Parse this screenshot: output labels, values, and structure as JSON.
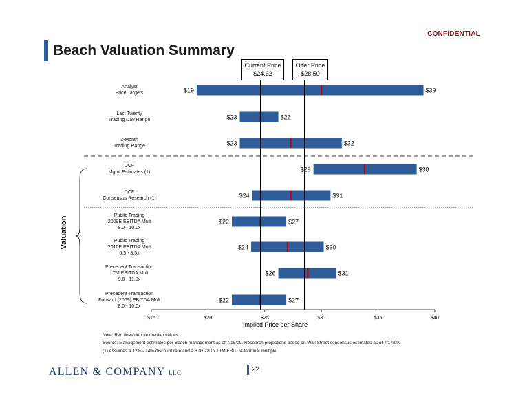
{
  "header": {
    "confidential": "CONFIDENTIAL",
    "title": "Beach Valuation Summary"
  },
  "reference_prices": {
    "current": {
      "label": "Current Price",
      "value": "$24.62",
      "price": 24.62
    },
    "offer": {
      "label": "Offer Price",
      "value": "$28.50",
      "price": 28.5
    }
  },
  "side_label": "Valuation",
  "chart_data": {
    "type": "bar",
    "orientation": "horizontal-range",
    "title": "Beach Valuation Summary",
    "xlabel": "Implied Price per Share",
    "xlim": [
      15,
      40
    ],
    "ticks": [
      {
        "value": 15,
        "label": "$15"
      },
      {
        "value": 20,
        "label": "$20"
      },
      {
        "value": 25,
        "label": "$25"
      },
      {
        "value": 30,
        "label": "$30"
      },
      {
        "value": 35,
        "label": "$35"
      },
      {
        "value": 40,
        "label": "$40"
      }
    ],
    "rows": [
      {
        "label": "Analyst\nPrice Targets",
        "low": 19,
        "high": 39,
        "median": 30,
        "low_label": "$19",
        "high_label": "$39"
      },
      {
        "label": "Last Twenty\nTrading Day Range",
        "low": 22.8,
        "high": 26.2,
        "median": 24.62,
        "low_label": "$23",
        "high_label": "$26"
      },
      {
        "label": "3-Month\nTrading Range",
        "low": 22.8,
        "high": 31.8,
        "median": 27.3,
        "low_label": "$23",
        "high_label": "$32"
      },
      {
        "label": "DCF\nMgmt Estimates (1)",
        "low": 29.3,
        "high": 38.4,
        "median": 33.8,
        "low_label": "$29",
        "high_label": "$38"
      },
      {
        "label": "DCF\nConsensus Research  (1)",
        "low": 23.9,
        "high": 30.8,
        "median": 27.3,
        "low_label": "$24",
        "high_label": "$31"
      },
      {
        "label": "Public Trading\n2009E EBITDA Mult\n8.0 - 10.0x",
        "low": 22.1,
        "high": 26.9,
        "median": 24.6,
        "low_label": "$22",
        "high_label": "$27"
      },
      {
        "label": "Public Trading\n2010E EBITDA Mult\n6.5 - 8.5x",
        "low": 23.8,
        "high": 30.2,
        "median": 27.0,
        "low_label": "$24",
        "high_label": "$30"
      },
      {
        "label": "Precedent Transaction\nLTM EBITDA Mult\n9.0 - 11.0x",
        "low": 26.2,
        "high": 31.3,
        "median": 28.8,
        "low_label": "$26",
        "high_label": "$31"
      },
      {
        "label": "Precedent Transaction\nForward (2009) EBITDA Mult\n8.0 - 10.0x",
        "low": 22.1,
        "high": 26.9,
        "median": 24.6,
        "low_label": "$22",
        "high_label": "$27"
      }
    ],
    "colors": {
      "bar": "#2E5C9A",
      "median": "#C00000",
      "reference_line": "#000000"
    }
  },
  "notes": [
    "Note: Red lines denote median values.",
    "Source: Management estimates per Beach management as of 7/15/09.  Research projections based on Wall Street consensus estimates as of 7/17/09.",
    "(1) Assumes a 12% - 14% discount rate and a 6.0x - 8.0x LTM EBITDA terminal multiple."
  ],
  "footer": {
    "logo_main": "ALLEN & COMPANY",
    "logo_suffix": "LLC",
    "page_number": "22"
  }
}
